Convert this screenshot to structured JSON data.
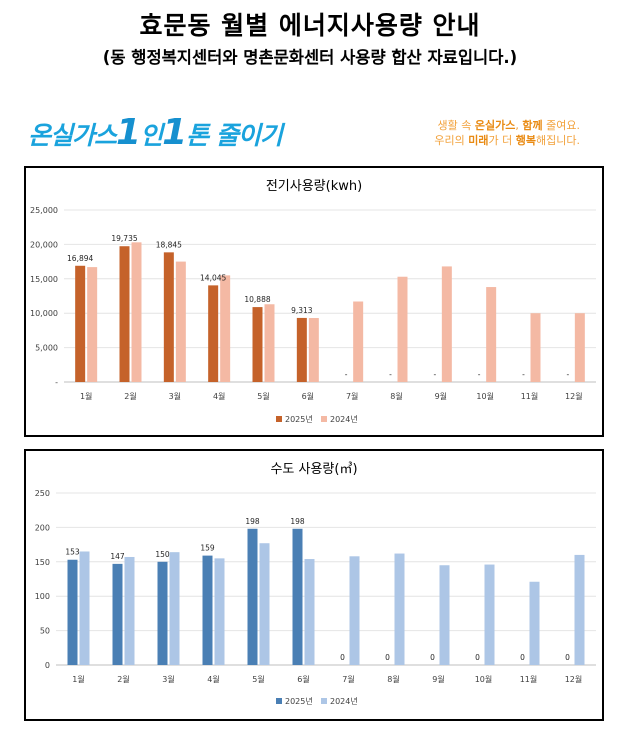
{
  "header": {
    "title": "효문동 월별 에너지사용량 안내",
    "subtitle": "(동 행정복지센터와 명촌문화센터 사용량 합산 자료입니다.)"
  },
  "banner": {
    "part1": "온실가스",
    "num1": "1",
    "part2": "인",
    "num2": "1",
    "part3": "톤 줄이기",
    "slogan_line1_pre": "생활 속 ",
    "slogan_line1_b1": "온실가스",
    "slogan_line1_mid": ", ",
    "slogan_line1_b2": "함께",
    "slogan_line1_post": " 줄여요.",
    "slogan_line2_pre": "우리의 ",
    "slogan_line2_b1": "미래",
    "slogan_line2_mid": "가 더 ",
    "slogan_line2_b2": "행복",
    "slogan_line2_post": "해집니다."
  },
  "colors": {
    "electric_2025": "#c5622a",
    "electric_2024": "#f4b9a4",
    "water_2025": "#4a7fb4",
    "water_2024": "#adc6e6"
  },
  "chart_data": [
    {
      "type": "bar",
      "title": "전기사용량(kwh)",
      "categories": [
        "1월",
        "2월",
        "3월",
        "4월",
        "5월",
        "6월",
        "7월",
        "8월",
        "9월",
        "10월",
        "11월",
        "12월"
      ],
      "series": [
        {
          "name": "2025년",
          "values": [
            16894,
            19735,
            18845,
            14045,
            10888,
            9313,
            0,
            0,
            0,
            0,
            0,
            0
          ],
          "labels": [
            "16,894",
            "19,735",
            "18,845",
            "14,045",
            "10,888",
            "9,313",
            "-",
            "-",
            "-",
            "-",
            "-",
            "-"
          ]
        },
        {
          "name": "2024년",
          "values": [
            16700,
            20300,
            17500,
            15500,
            11300,
            9300,
            11700,
            15300,
            16800,
            13800,
            10000,
            10000
          ]
        }
      ],
      "yticks": [
        "-",
        "5,000",
        "10,000",
        "15,000",
        "20,000",
        "25,000"
      ],
      "ylim": [
        0,
        25000
      ],
      "legend": "bottom"
    },
    {
      "type": "bar",
      "title": "수도 사용량(㎥)",
      "categories": [
        "1월",
        "2월",
        "3월",
        "4월",
        "5월",
        "6월",
        "7월",
        "8월",
        "9월",
        "10월",
        "11월",
        "12월"
      ],
      "series": [
        {
          "name": "2025년",
          "values": [
            153,
            147,
            150,
            159,
            198,
            198,
            0,
            0,
            0,
            0,
            0,
            0
          ],
          "labels": [
            "153",
            "147",
            "150",
            "159",
            "198",
            "198",
            "0",
            "0",
            "0",
            "0",
            "0",
            "0"
          ]
        },
        {
          "name": "2024년",
          "values": [
            165,
            157,
            164,
            155,
            177,
            154,
            158,
            162,
            145,
            146,
            121,
            160
          ]
        }
      ],
      "yticks": [
        "0",
        "50",
        "100",
        "150",
        "200",
        "250"
      ],
      "ylim": [
        0,
        250
      ],
      "legend": "bottom"
    }
  ]
}
